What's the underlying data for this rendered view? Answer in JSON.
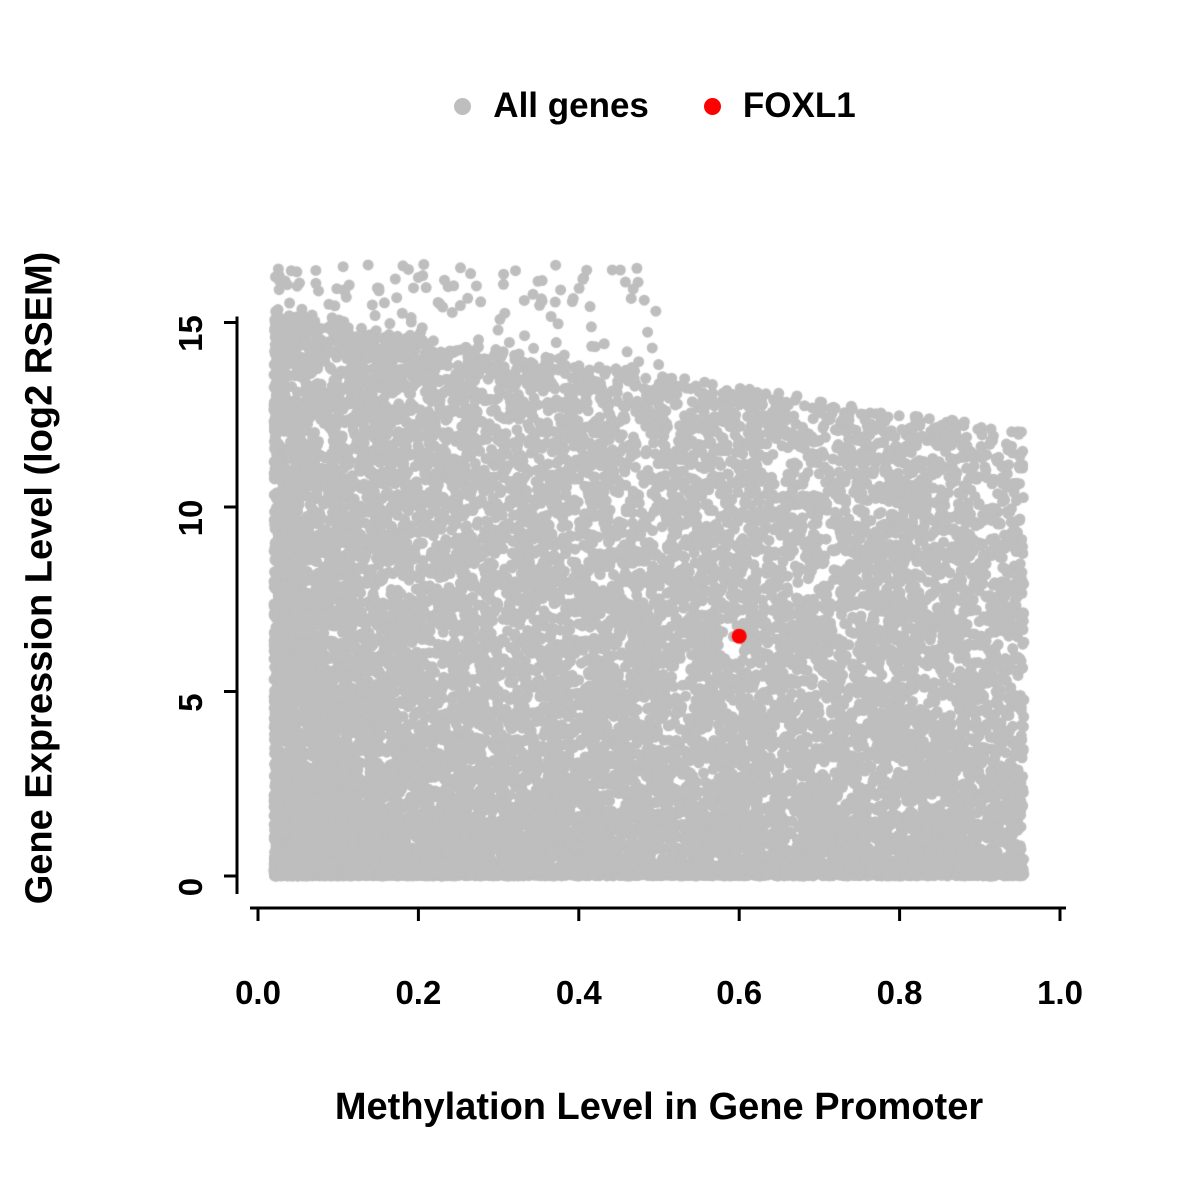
{
  "figure": {
    "background": "#ffffff"
  },
  "legend": {
    "position": "top",
    "entries": [
      {
        "label": "All genes",
        "color": "#bebebe"
      },
      {
        "label": "FOXL1",
        "color": "#ff0000"
      }
    ]
  },
  "chart_data": {
    "type": "scatter",
    "title": "",
    "xlabel": "Methylation Level in Gene Promoter",
    "ylabel": "Gene Expression Level (log2 RSEM)",
    "xlim": [
      0,
      1.0
    ],
    "ylim": [
      0,
      16.6
    ],
    "grid": false,
    "legend_position": "top",
    "x_ticks": {
      "values": [
        0,
        0.2,
        0.4,
        0.6,
        0.8,
        1.0
      ],
      "labels": [
        "0.0",
        "0.2",
        "0.4",
        "0.6",
        "0.8",
        "1.0"
      ]
    },
    "y_ticks": {
      "values": [
        0,
        5,
        10,
        15
      ],
      "labels": [
        "0",
        "5",
        "10",
        "15"
      ]
    },
    "series": [
      {
        "name": "All genes",
        "color": "#bebebe",
        "marker_radius": 5.5,
        "distribution": {
          "kind": "generated-dense-cloud",
          "seed": 42,
          "n_points": 16000,
          "x_min": 0.02,
          "x_max": 0.955,
          "x_power": 1.35,
          "y_max_at_x0": 15.3,
          "y_max_slope": -3.4,
          "y_power": 1.45,
          "zero_fraction": 0.12,
          "outlier_fraction": 0.012,
          "y_cap": 16.6
        }
      },
      {
        "name": "FOXL1",
        "color": "#ff0000",
        "marker_radius": 7.5,
        "points": [
          {
            "x": 0.6,
            "y": 6.5
          }
        ]
      }
    ]
  }
}
